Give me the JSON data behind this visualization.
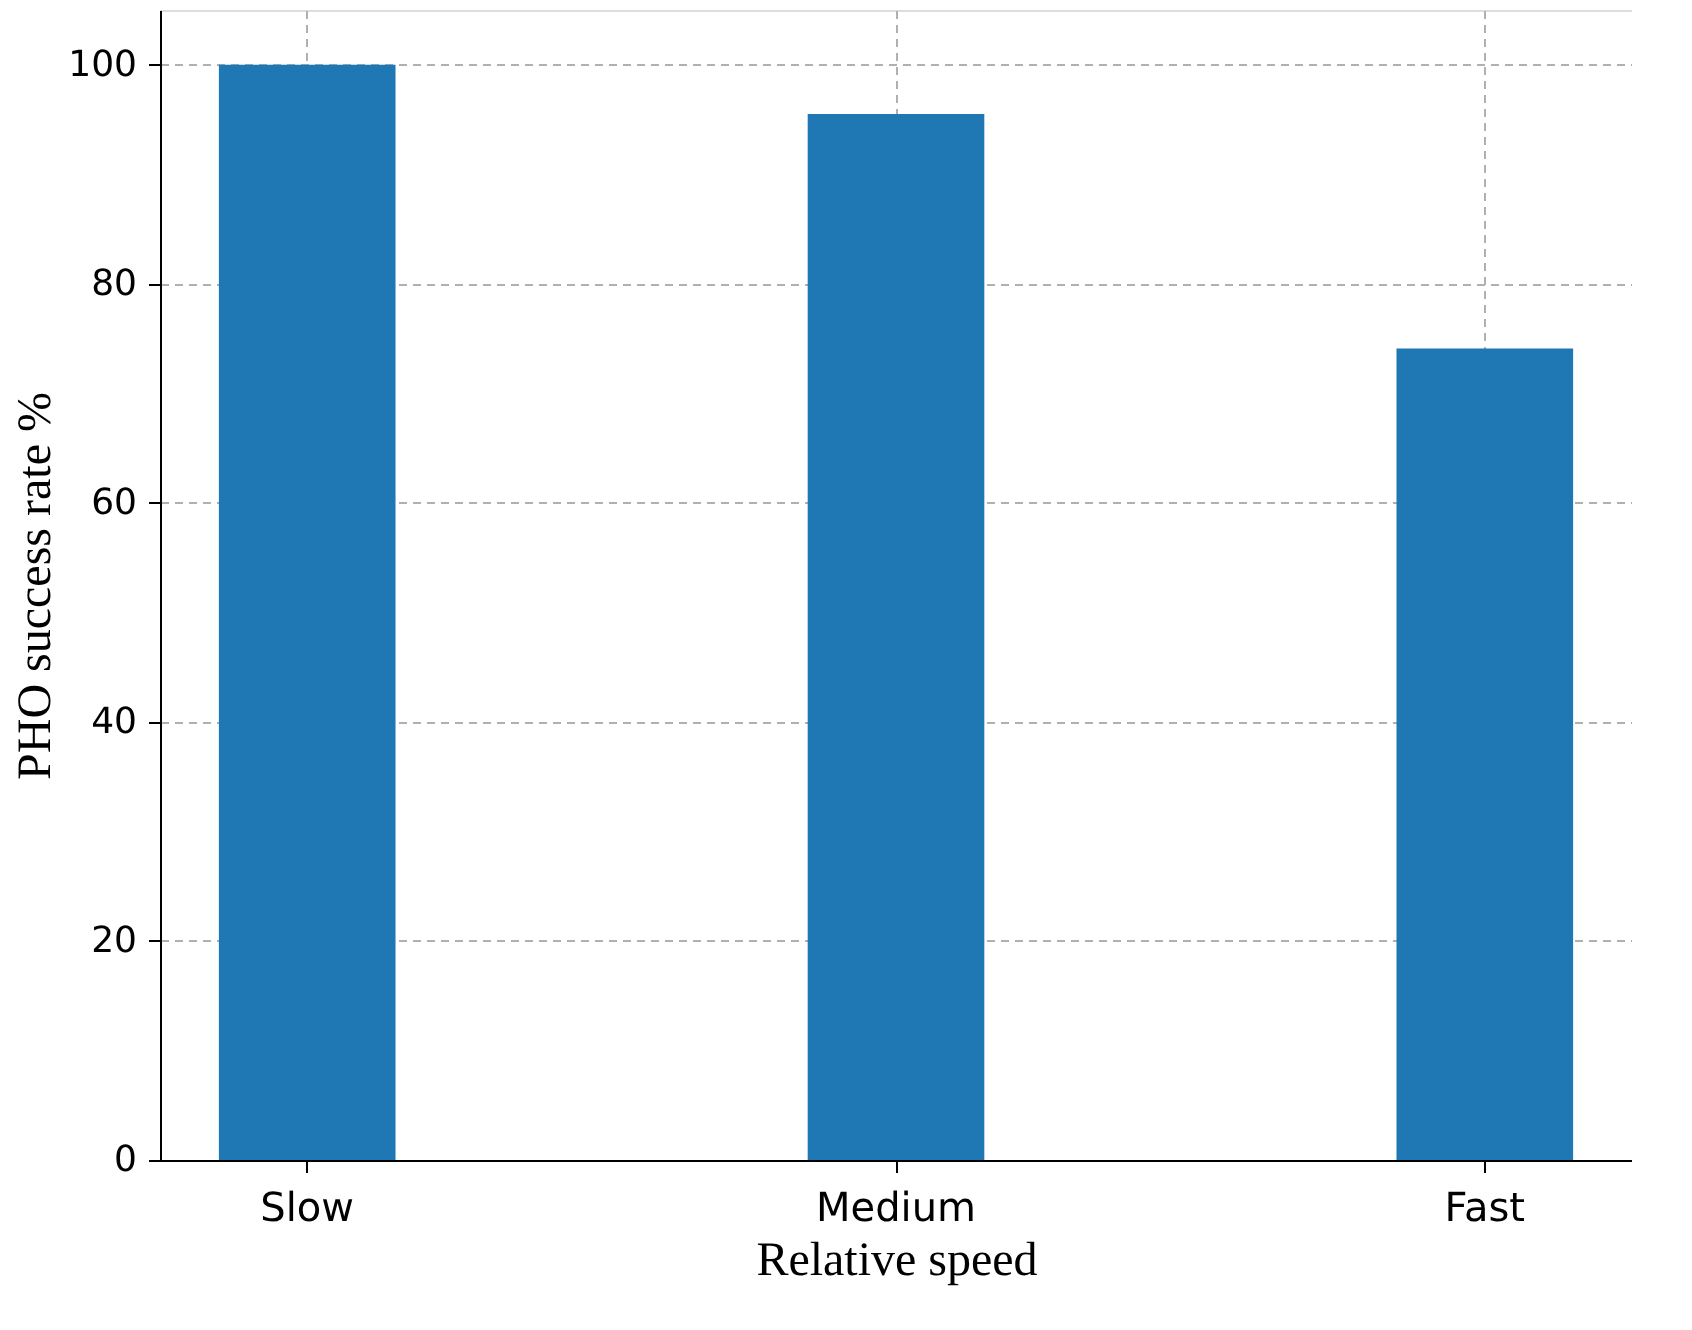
{
  "chart_data": {
    "type": "bar",
    "xlabel": "Relative speed",
    "ylabel": "PHO success rate %",
    "categories": [
      "Slow",
      "Medium",
      "Fast"
    ],
    "values": [
      100,
      95.5,
      74.1
    ],
    "color": "#1f77b4",
    "ylim": [
      0,
      105
    ],
    "yticks": [
      0,
      20,
      40,
      60,
      80,
      100
    ],
    "grid": true
  }
}
